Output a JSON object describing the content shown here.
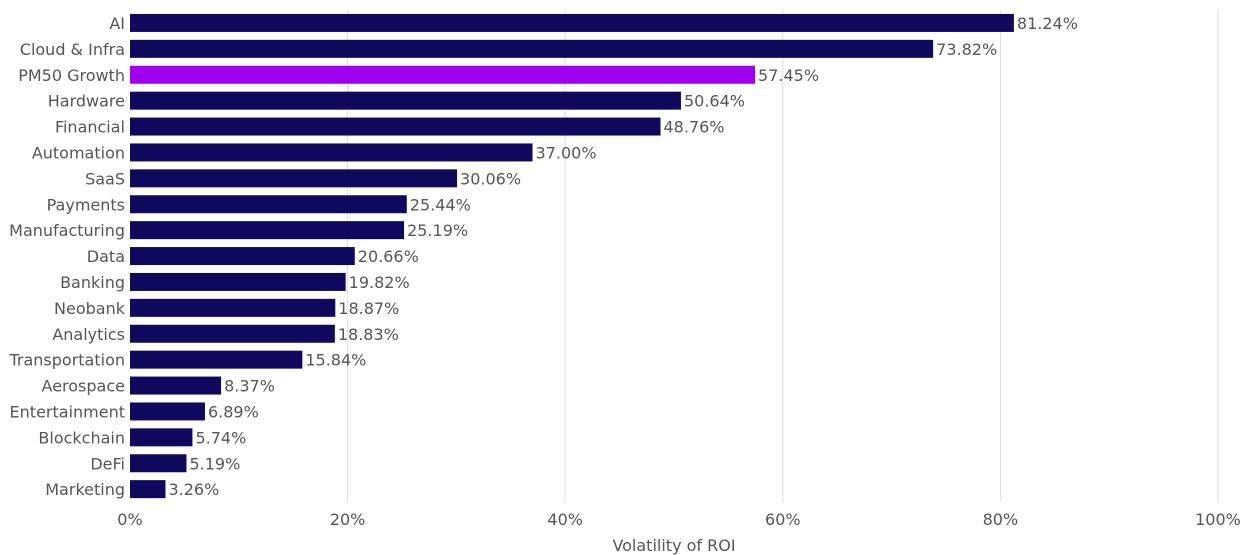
{
  "chart_data": {
    "type": "bar",
    "orientation": "horizontal",
    "categories": [
      "AI",
      "Cloud & Infra",
      "PM50 Growth",
      "Hardware",
      "Financial",
      "Automation",
      "SaaS",
      "Payments",
      "Manufacturing",
      "Data",
      "Banking",
      "Neobank",
      "Analytics",
      "Transportation",
      "Aerospace",
      "Entertainment",
      "Blockchain",
      "DeFi",
      "Marketing"
    ],
    "values": [
      81.24,
      73.82,
      57.45,
      50.64,
      48.76,
      37.0,
      30.06,
      25.44,
      25.19,
      20.66,
      19.82,
      18.87,
      18.83,
      15.84,
      8.37,
      6.89,
      5.74,
      5.19,
      3.26
    ],
    "value_labels": [
      "81.24%",
      "73.82%",
      "57.45%",
      "50.64%",
      "48.76%",
      "37.00%",
      "30.06%",
      "25.44%",
      "25.19%",
      "20.66%",
      "19.82%",
      "18.87%",
      "18.83%",
      "15.84%",
      "8.37%",
      "6.89%",
      "5.74%",
      "5.19%",
      "3.26%"
    ],
    "highlight_category": "PM50 Growth",
    "xlabel": "Volatility of ROI",
    "ylabel": "",
    "xlim": [
      0,
      100
    ],
    "x_ticks": [
      0,
      20,
      40,
      60,
      80,
      100
    ],
    "x_tick_labels": [
      "0%",
      "20%",
      "40%",
      "60%",
      "80%",
      "100%"
    ],
    "grid": true,
    "legend": "none",
    "colors": {
      "bar": "#0f0a5e",
      "highlight": "#a000f0",
      "grid": "#dcdcdc",
      "text": "#555555"
    }
  }
}
